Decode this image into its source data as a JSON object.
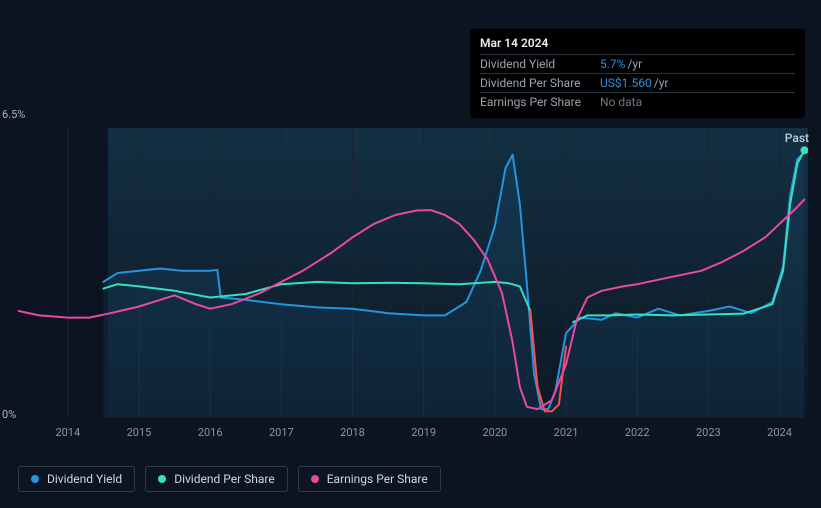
{
  "chart": {
    "type": "line",
    "background_color": "#0d1421",
    "plot_gradient_top": "#133043",
    "plot_gradient_bottom": "#0d1723",
    "plot_left_x": 90,
    "grid_color": "#1b2533",
    "yaxis": {
      "min": 0,
      "max": 6.5,
      "labels": [
        {
          "value": 6.5,
          "text": "6.5%"
        },
        {
          "value": 0,
          "text": "0%"
        }
      ],
      "label_color": "#a9b4c2",
      "label_fontsize": 11
    },
    "xaxis": {
      "min": 2013.3,
      "max": 2024.4,
      "ticks": [
        2014,
        2015,
        2016,
        2017,
        2018,
        2019,
        2020,
        2021,
        2022,
        2023,
        2024
      ],
      "label_color": "#8a94a3",
      "label_fontsize": 11
    },
    "past_label": "Past",
    "series": {
      "dividend_yield": {
        "label": "Dividend Yield",
        "color": "#2394df",
        "stroke_width": 2,
        "area_fill": "rgba(35,148,223,0.10)",
        "points": [
          [
            2014.5,
            3.05
          ],
          [
            2014.7,
            3.25
          ],
          [
            2015.0,
            3.3
          ],
          [
            2015.3,
            3.35
          ],
          [
            2015.6,
            3.3
          ],
          [
            2016.0,
            3.3
          ],
          [
            2016.1,
            3.32
          ],
          [
            2016.15,
            2.7
          ],
          [
            2016.5,
            2.65
          ],
          [
            2017.0,
            2.55
          ],
          [
            2017.5,
            2.48
          ],
          [
            2018.0,
            2.45
          ],
          [
            2018.5,
            2.35
          ],
          [
            2019.0,
            2.3
          ],
          [
            2019.3,
            2.3
          ],
          [
            2019.6,
            2.6
          ],
          [
            2019.8,
            3.3
          ],
          [
            2020.0,
            4.3
          ],
          [
            2020.15,
            5.6
          ],
          [
            2020.25,
            5.9
          ],
          [
            2020.35,
            4.8
          ],
          [
            2020.45,
            3.0
          ],
          [
            2020.55,
            1.0
          ],
          [
            2020.65,
            0.2
          ],
          [
            2020.75,
            0.2
          ],
          [
            2020.85,
            0.6
          ],
          [
            2021.0,
            1.9
          ],
          [
            2021.2,
            2.25
          ],
          [
            2021.5,
            2.2
          ],
          [
            2021.7,
            2.35
          ],
          [
            2022.0,
            2.25
          ],
          [
            2022.3,
            2.45
          ],
          [
            2022.6,
            2.3
          ],
          [
            2023.0,
            2.4
          ],
          [
            2023.3,
            2.5
          ],
          [
            2023.6,
            2.35
          ],
          [
            2023.9,
            2.6
          ],
          [
            2024.05,
            3.4
          ],
          [
            2024.15,
            5.0
          ],
          [
            2024.25,
            5.8
          ],
          [
            2024.35,
            5.95
          ]
        ]
      },
      "dividend_per_share": {
        "label": "Dividend Per Share",
        "color": "#35e0c0",
        "stroke_width": 2,
        "danger_color": "#ff4d4d",
        "danger_range": [
          2020.5,
          2021.05
        ],
        "points": [
          [
            2014.5,
            2.9
          ],
          [
            2014.7,
            3.0
          ],
          [
            2015.0,
            2.95
          ],
          [
            2015.5,
            2.85
          ],
          [
            2016.0,
            2.7
          ],
          [
            2016.5,
            2.78
          ],
          [
            2017.0,
            3.0
          ],
          [
            2017.5,
            3.05
          ],
          [
            2018.0,
            3.02
          ],
          [
            2018.5,
            3.03
          ],
          [
            2019.0,
            3.02
          ],
          [
            2019.5,
            3.0
          ],
          [
            2020.0,
            3.05
          ],
          [
            2020.2,
            3.02
          ],
          [
            2020.35,
            2.95
          ],
          [
            2020.5,
            2.4
          ],
          [
            2020.6,
            0.7
          ],
          [
            2020.7,
            0.15
          ],
          [
            2020.8,
            0.15
          ],
          [
            2020.9,
            0.3
          ],
          [
            2021.0,
            1.6
          ],
          [
            2021.1,
            2.15
          ],
          [
            2021.3,
            2.3
          ],
          [
            2021.6,
            2.3
          ],
          [
            2022.0,
            2.32
          ],
          [
            2022.5,
            2.3
          ],
          [
            2023.0,
            2.32
          ],
          [
            2023.5,
            2.34
          ],
          [
            2023.9,
            2.55
          ],
          [
            2024.05,
            3.3
          ],
          [
            2024.15,
            4.8
          ],
          [
            2024.25,
            5.7
          ],
          [
            2024.35,
            6.0
          ]
        ]
      },
      "earnings_per_share": {
        "label": "Earnings Per Share",
        "color": "#e84aa0",
        "stroke_width": 2,
        "points": [
          [
            2013.3,
            2.4
          ],
          [
            2013.6,
            2.3
          ],
          [
            2014.0,
            2.25
          ],
          [
            2014.3,
            2.25
          ],
          [
            2014.6,
            2.35
          ],
          [
            2015.0,
            2.5
          ],
          [
            2015.3,
            2.65
          ],
          [
            2015.5,
            2.75
          ],
          [
            2015.8,
            2.55
          ],
          [
            2016.0,
            2.45
          ],
          [
            2016.3,
            2.55
          ],
          [
            2016.7,
            2.8
          ],
          [
            2017.0,
            3.05
          ],
          [
            2017.3,
            3.3
          ],
          [
            2017.7,
            3.7
          ],
          [
            2018.0,
            4.05
          ],
          [
            2018.3,
            4.35
          ],
          [
            2018.6,
            4.55
          ],
          [
            2018.9,
            4.65
          ],
          [
            2019.1,
            4.66
          ],
          [
            2019.3,
            4.55
          ],
          [
            2019.5,
            4.35
          ],
          [
            2019.7,
            4.0
          ],
          [
            2019.9,
            3.55
          ],
          [
            2020.1,
            2.8
          ],
          [
            2020.25,
            1.7
          ],
          [
            2020.35,
            0.7
          ],
          [
            2020.45,
            0.25
          ],
          [
            2020.6,
            0.2
          ],
          [
            2020.8,
            0.4
          ],
          [
            2021.0,
            1.2
          ],
          [
            2021.15,
            2.2
          ],
          [
            2021.3,
            2.7
          ],
          [
            2021.5,
            2.85
          ],
          [
            2021.8,
            2.95
          ],
          [
            2022.0,
            3.0
          ],
          [
            2022.3,
            3.1
          ],
          [
            2022.6,
            3.2
          ],
          [
            2022.9,
            3.3
          ],
          [
            2023.2,
            3.5
          ],
          [
            2023.5,
            3.75
          ],
          [
            2023.8,
            4.05
          ],
          [
            2024.0,
            4.35
          ],
          [
            2024.2,
            4.65
          ],
          [
            2024.35,
            4.9
          ]
        ]
      }
    }
  },
  "tooltip": {
    "date": "Mar 14 2024",
    "rows": [
      {
        "label": "Dividend Yield",
        "value": "5.7%",
        "suffix": "/yr",
        "value_color": "blue"
      },
      {
        "label": "Dividend Per Share",
        "value": "US$1.560",
        "suffix": "/yr",
        "value_color": "blue"
      },
      {
        "label": "Earnings Per Share",
        "value": "No data",
        "value_color": "nodata"
      }
    ]
  },
  "legend": [
    {
      "key": "dividend_yield",
      "label": "Dividend Yield",
      "color": "#2394df"
    },
    {
      "key": "dividend_per_share",
      "label": "Dividend Per Share",
      "color": "#35e0c0"
    },
    {
      "key": "earnings_per_share",
      "label": "Earnings Per Share",
      "color": "#e84aa0"
    }
  ]
}
